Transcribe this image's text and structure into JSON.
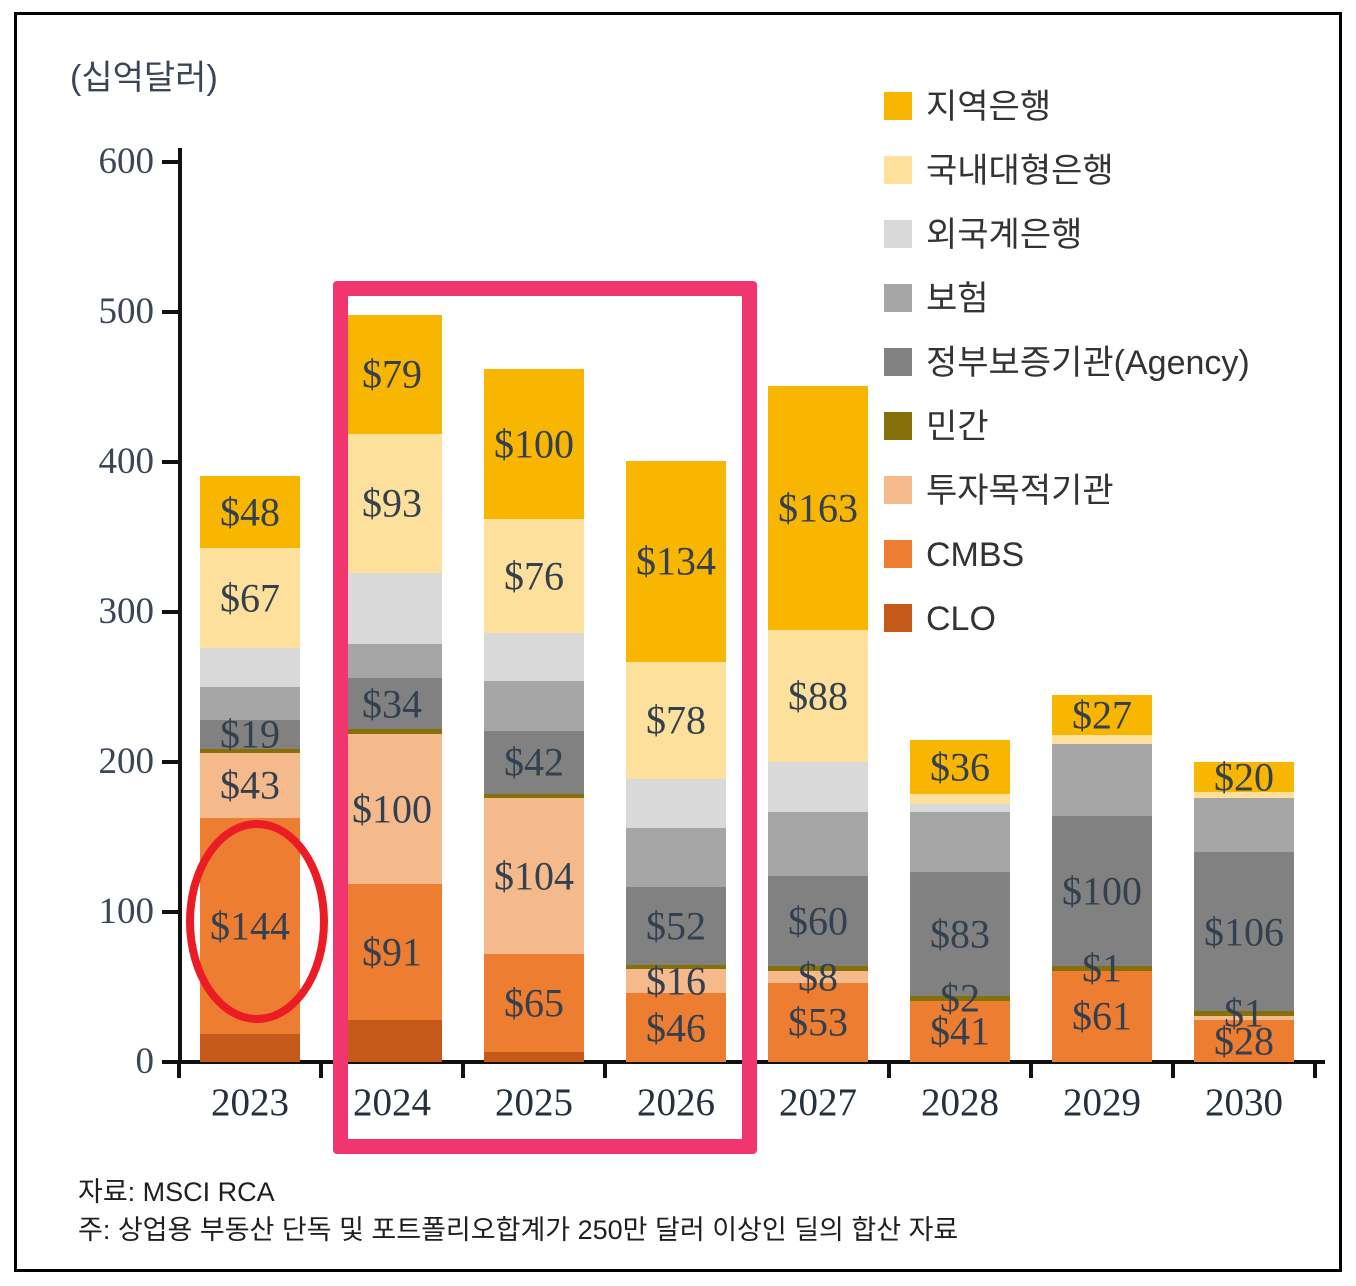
{
  "title": "(십억달러)",
  "source": "자료: MSCI RCA",
  "note": "주: 상업용 부동산 단독 및 포트폴리오합계가 250만 달러 이상인 딜의 합산 자료",
  "colors": {
    "red_ellipse": "#eb1c24",
    "pink_box": "#f0356f",
    "axis": "#111111",
    "bar_label_text": "#33404f",
    "axis_label_text": "#3a4656"
  },
  "chart_data": {
    "type": "bar",
    "stacked": true,
    "unit_label": "(십억달러)",
    "categories": [
      "2023",
      "2024",
      "2025",
      "2026",
      "2027",
      "2028",
      "2029",
      "2030"
    ],
    "y_axis": {
      "min": 0,
      "max": 600,
      "tick_interval": 100,
      "ticks": [
        0,
        100,
        200,
        300,
        400,
        500,
        600
      ],
      "grid": false
    },
    "legend_position": "right-top",
    "legend": [
      {
        "name": "지역은행",
        "color": "#f8b600"
      },
      {
        "name": "국내대형은행",
        "color": "#fce09b"
      },
      {
        "name": "외국계은행",
        "color": "#d9d9d9"
      },
      {
        "name": "보험",
        "color": "#a6a6a6"
      },
      {
        "name": "정부보증기관(Agency)",
        "color": "#818181"
      },
      {
        "name": "민간",
        "color": "#86700a"
      },
      {
        "name": "투자목적기관",
        "color": "#f5ba8c"
      },
      {
        "name": "CMBS",
        "color": "#ed7d31"
      },
      {
        "name": "CLO",
        "color": "#c4591a"
      }
    ],
    "series": [
      {
        "name": "CLO",
        "color": "#c4591a",
        "values": [
          19,
          28,
          7,
          0,
          0,
          0,
          0,
          0
        ],
        "labels": [
          null,
          null,
          null,
          null,
          null,
          null,
          null,
          null
        ]
      },
      {
        "name": "CMBS",
        "color": "#ed7d31",
        "values": [
          144,
          91,
          65,
          46,
          53,
          41,
          61,
          28
        ],
        "labels": [
          "$144",
          "$91",
          "$65",
          "$46",
          "$53",
          "$41",
          "$61",
          "$28"
        ]
      },
      {
        "name": "투자목적기관",
        "color": "#f5ba8c",
        "values": [
          43,
          100,
          104,
          16,
          8,
          0,
          0,
          2
        ],
        "labels": [
          "$43",
          "$100",
          "$104",
          "$16",
          "$8",
          null,
          null,
          null
        ]
      },
      {
        "name": "민간",
        "color": "#86700a",
        "values": [
          2,
          3,
          3,
          3,
          2,
          2,
          1,
          1
        ],
        "labels": [
          null,
          null,
          null,
          null,
          null,
          "$2",
          "$1",
          "$1"
        ]
      },
      {
        "name": "정부보증기관(Agency)",
        "color": "#818181",
        "values": [
          19,
          34,
          42,
          52,
          60,
          83,
          100,
          106
        ],
        "labels": [
          "$19",
          "$34",
          "$42",
          "$52",
          "$60",
          "$83",
          "$100",
          "$106"
        ]
      },
      {
        "name": "보험",
        "color": "#a6a6a6",
        "values": [
          22,
          23,
          33,
          39,
          43,
          40,
          48,
          36
        ],
        "labels": [
          null,
          null,
          null,
          null,
          null,
          null,
          null,
          null
        ]
      },
      {
        "name": "외국계은행",
        "color": "#d9d9d9",
        "values": [
          26,
          47,
          32,
          33,
          33,
          5,
          0,
          0
        ],
        "labels": [
          null,
          null,
          null,
          null,
          null,
          null,
          null,
          null
        ]
      },
      {
        "name": "국내대형은행",
        "color": "#fce09b",
        "values": [
          67,
          93,
          76,
          78,
          88,
          7,
          6,
          4
        ],
        "labels": [
          "$67",
          "$93",
          "$76",
          "$78",
          "$88",
          null,
          null,
          null
        ]
      },
      {
        "name": "지역은행",
        "color": "#f8b600",
        "values": [
          48,
          79,
          100,
          134,
          163,
          36,
          27,
          20
        ],
        "labels": [
          "$48",
          "$79",
          "$100",
          "$134",
          "$163",
          "$36",
          "$27",
          "$20"
        ]
      }
    ],
    "annotations": {
      "red_ellipse": {
        "shape": "ellipse",
        "color": "#eb1c24",
        "target": "2023 CMBS segment ($144)"
      },
      "pink_box": {
        "shape": "rectangle",
        "color": "#f0356f",
        "highlighted_years": [
          "2024",
          "2025",
          "2026"
        ]
      }
    }
  }
}
